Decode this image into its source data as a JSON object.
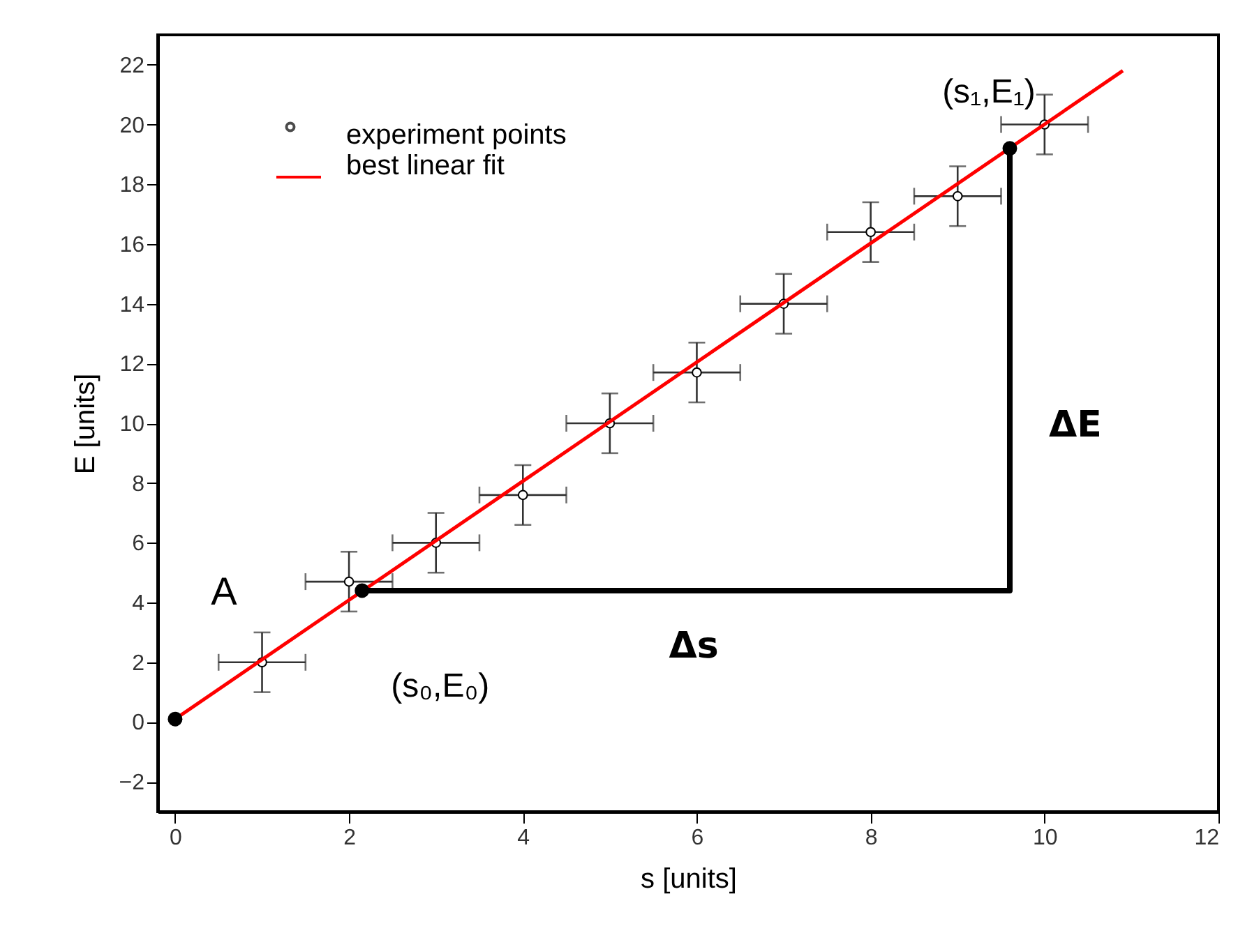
{
  "chart_data": {
    "type": "scatter",
    "xlabel": "s [units]",
    "ylabel": "E [units]",
    "xlim": [
      -0.2,
      12
    ],
    "xticks": [
      0,
      2,
      4,
      6,
      8,
      10,
      12
    ],
    "ylim": [
      -3,
      23
    ],
    "yticks": [
      -2,
      0,
      2,
      4,
      6,
      8,
      10,
      12,
      14,
      16,
      18,
      20,
      22
    ],
    "grid": false,
    "legend": "top left",
    "series": [
      {
        "name": "experiment points",
        "marker": "circle",
        "color": "#000000",
        "x": [
          1,
          2,
          3,
          4,
          5,
          6,
          7,
          8,
          9,
          10
        ],
        "values": [
          2,
          4.7,
          6,
          7.6,
          10,
          11.7,
          14,
          16.4,
          17.6,
          20
        ],
        "errors": [
          1,
          1,
          1,
          1,
          1,
          1,
          1,
          1,
          1,
          1
        ],
        "xerrors": [
          0.5,
          0.5,
          0.5,
          0.5,
          0.5,
          0.5,
          0.5,
          0.5,
          0.5,
          0.5
        ]
      },
      {
        "name": "best linear fit",
        "type": "line",
        "color": "#ff0000",
        "x": [
          0,
          10.9
        ],
        "values": [
          0.1,
          21.8
        ]
      },
      {
        "type": "line",
        "color": "#000000",
        "x": [
          2.15,
          9.6,
          9.6
        ],
        "values": [
          4.4,
          4.4,
          19.2
        ]
      },
      {
        "marker": "circle",
        "color": "#000000",
        "x": [
          0,
          2.15,
          9.6
        ],
        "values": [
          0.1,
          4.4,
          19.2
        ]
      }
    ],
    "annotations": [
      {
        "text": "A",
        "x": 0,
        "y": 0.1
      },
      {
        "text": "(s₀,E₀)",
        "x": 2.15,
        "y": 4.4
      },
      {
        "text": "(s₁,E₁)",
        "x": 9.6,
        "y": 19.2
      },
      {
        "text": "Δs",
        "x": 5.9,
        "y": 4.4
      },
      {
        "text": "ΔE",
        "x": 9.6,
        "y": 11.8
      }
    ]
  }
}
